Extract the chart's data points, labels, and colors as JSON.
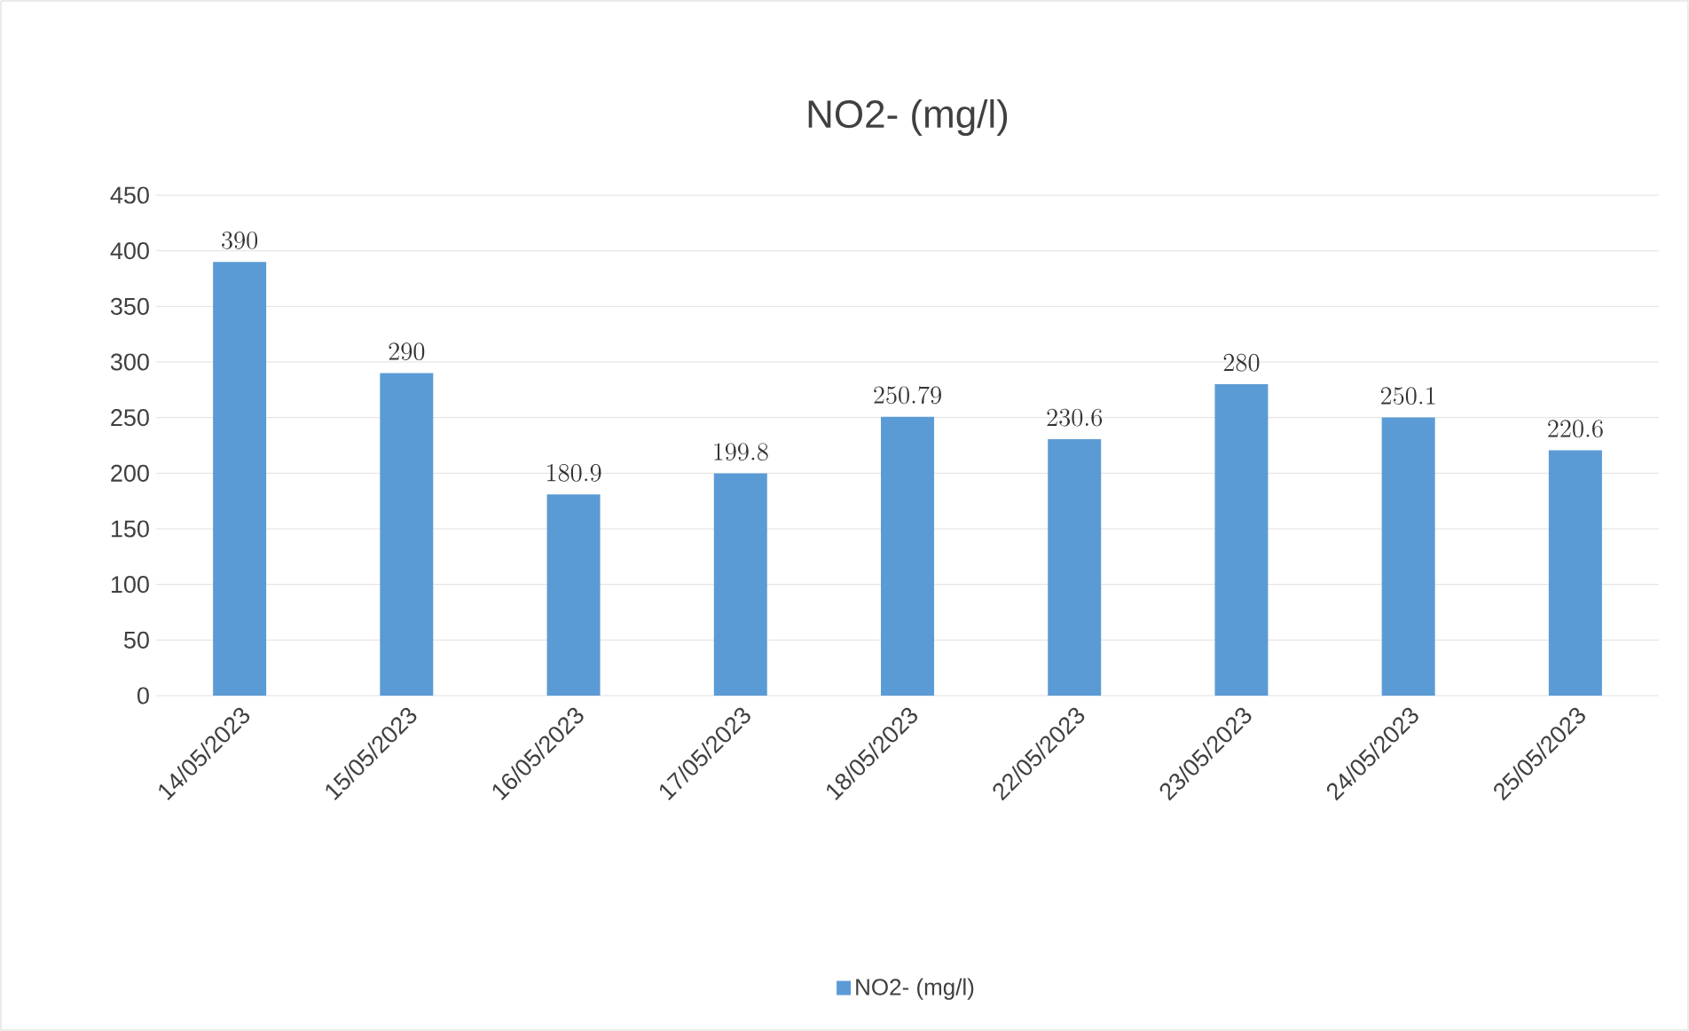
{
  "chart_data": {
    "type": "bar",
    "title": "NO2- (mg/l)",
    "categories": [
      "14/05/2023",
      "15/05/2023",
      "16/05/2023",
      "17/05/2023",
      "18/05/2023",
      "22/05/2023",
      "23/05/2023",
      "24/05/2023",
      "25/05/2023"
    ],
    "series": [
      {
        "name": "NO2- (mg/l)",
        "color": "#5b9bd5",
        "values": [
          390,
          290,
          180.9,
          199.8,
          250.79,
          230.6,
          280,
          250.1,
          220.6
        ]
      }
    ],
    "ylim": [
      0,
      450
    ],
    "yticks": [
      0,
      50,
      100,
      150,
      200,
      250,
      300,
      350,
      400,
      450
    ],
    "grid": "y",
    "legend": "bottom",
    "data_labels": true
  }
}
